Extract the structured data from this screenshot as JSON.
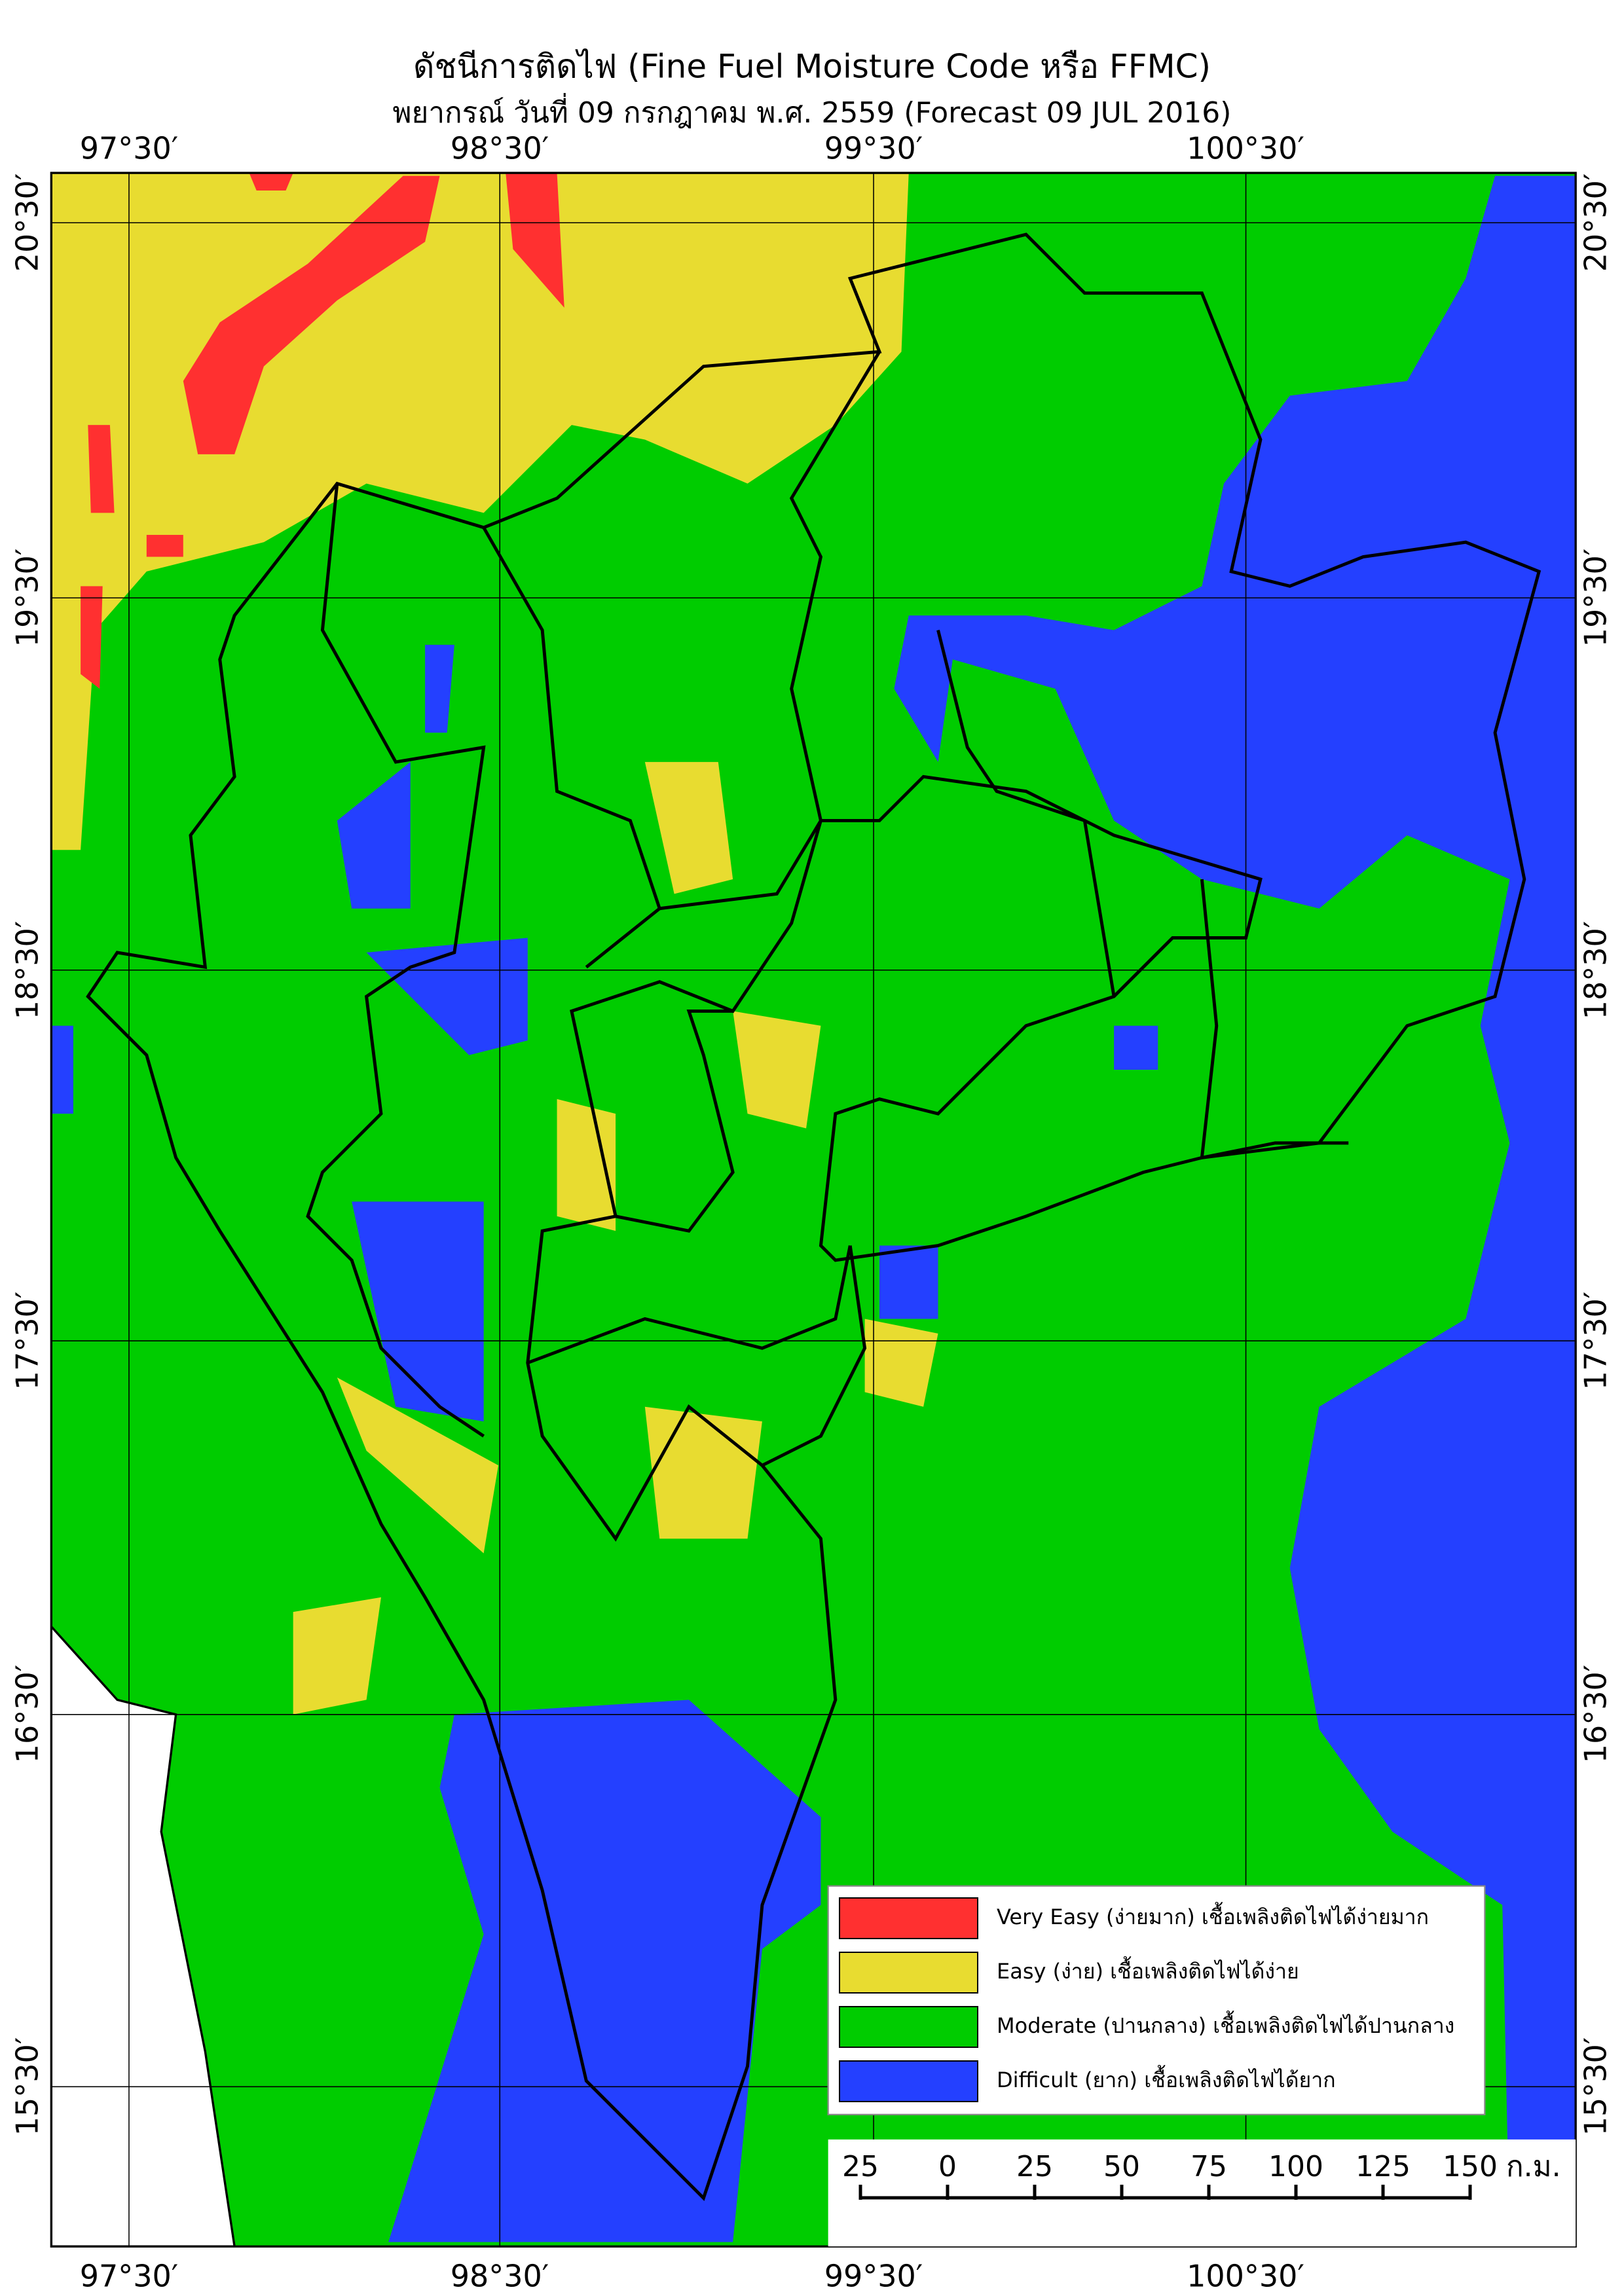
{
  "title": "ดัชนีการติดไฟ (Fine Fuel Moisture Code หรือ FFMC)",
  "subtitle": "พยากรณ์ วันที่ 09 กรกฎาคม พ.ศ. 2559 (Forecast 09 JUL 2016)",
  "longitude_labels": [
    "97°30′",
    "98°30′",
    "99°30′",
    "100°30′"
  ],
  "latitude_labels": [
    "20°30′",
    "19°30′",
    "18°30′",
    "17°30′",
    "16°30′",
    "15°30′"
  ],
  "legend": [
    {
      "label": "Very Easy (ง่ายมาก) เชื้อเพลิงติดไฟได้ง่ายมาก",
      "color": "#ff3030"
    },
    {
      "label": "Easy (ง่าย) เชื้อเพลิงติดไฟได้ง่าย",
      "color": "#e8dc30"
    },
    {
      "label": "Moderate (ปานกลาง) เชื้อเพลิงติดไฟได้ปานกลาง",
      "color": "#00cc00"
    },
    {
      "label": "Difficult (ยาก) เชื้อเพลิงติดไฟได้ยาก",
      "color": "#2440ff"
    }
  ],
  "scale_bar": {
    "labels": [
      "25",
      "0",
      "25",
      "50",
      "75",
      "100",
      "125",
      "150"
    ],
    "unit": "ก.ม."
  }
}
